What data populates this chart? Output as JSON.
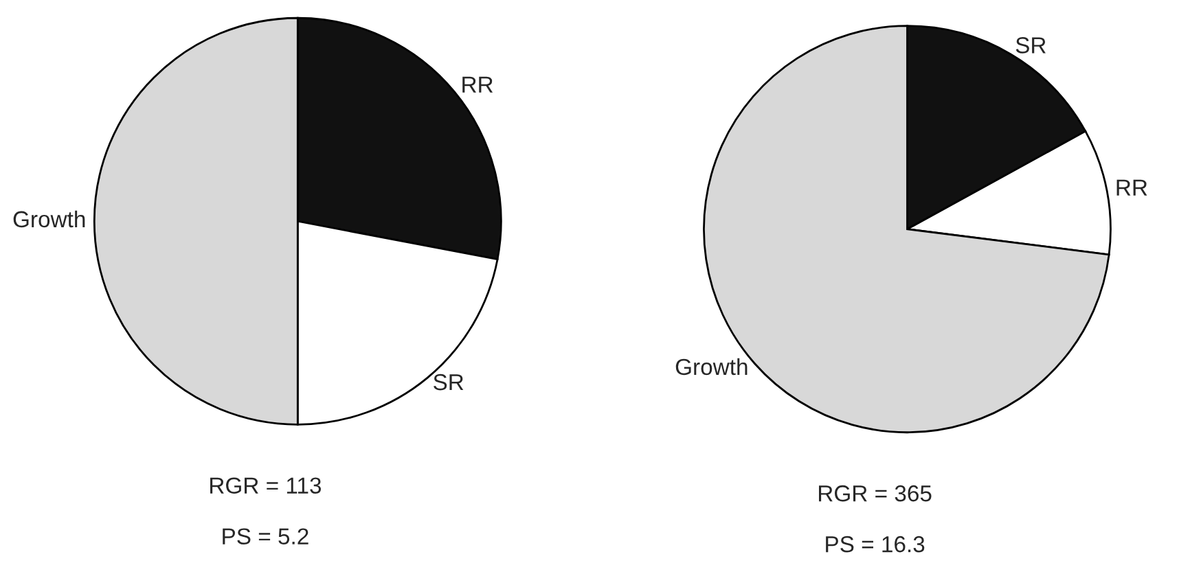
{
  "chart_data": [
    {
      "type": "pie",
      "categories": [
        "RR",
        "SR",
        "Growth"
      ],
      "values": [
        28,
        22,
        50
      ],
      "colors": [
        "#111111",
        "#ffffff",
        "#d8d8d8"
      ],
      "annotations": [
        "RGR = 113",
        "PS = 5.2"
      ]
    },
    {
      "type": "pie",
      "categories": [
        "SR",
        "RR",
        "Growth"
      ],
      "values": [
        17,
        10,
        73
      ],
      "colors": [
        "#111111",
        "#ffffff",
        "#d8d8d8"
      ],
      "annotations": [
        "RGR = 365",
        "PS = 16.3"
      ]
    }
  ]
}
